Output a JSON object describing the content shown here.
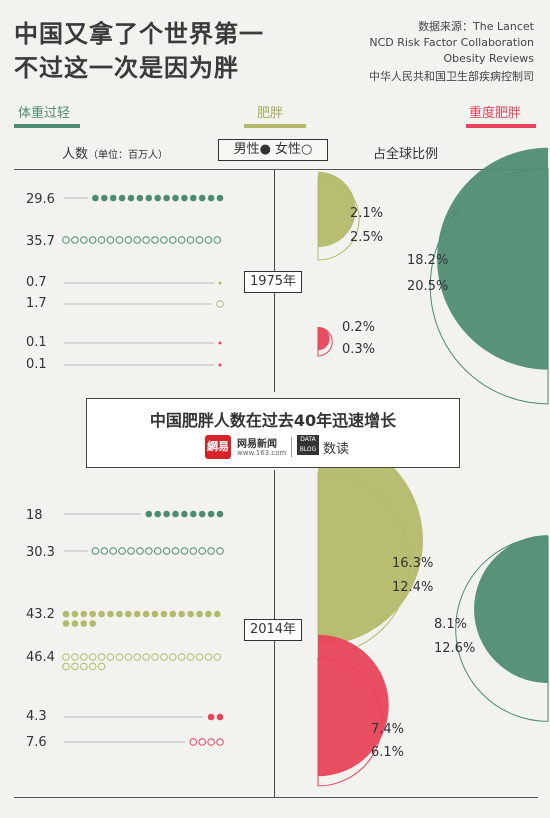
{
  "title": {
    "line1": "中国又拿了个世界第一",
    "line2": "不过这一次是因为胖"
  },
  "source": {
    "line1": "数据来源：The Lancet",
    "line2": "NCD Risk Factor Collaboration",
    "line3": "Obesity Reviews",
    "line4": "中华人民共和国卫生部疾病控制司"
  },
  "categories": {
    "underweight": "体重过轻",
    "obese": "肥胖",
    "severe": "重度肥胖"
  },
  "colors": {
    "underweight": "#4e8c72",
    "obese": "#b3bb6a",
    "severe": "#e8435a"
  },
  "header": {
    "count_label": "人数",
    "count_unit": "（单位：百万人）",
    "legend": "男性● 女性○",
    "share": "占全球比例"
  },
  "banner": {
    "title": "中国肥胖人数在过去40年迅速增长",
    "logo": "網易",
    "logo_name": "网易新闻",
    "logo_url": "www.163.com",
    "data_mark": "DATA BLOG",
    "data_read": "数读"
  },
  "chart_data": [
    {
      "type": "scatter",
      "year": "1975年",
      "description": "People count in millions (dots = male, circles = female) and share of global total",
      "rows": [
        {
          "category": "体重过轻",
          "sex": "男性",
          "count": "29.6",
          "share": "18.2%"
        },
        {
          "category": "体重过轻",
          "sex": "女性",
          "count": "35.7",
          "share": "20.5%"
        },
        {
          "category": "肥胖",
          "sex": "男性",
          "count": "0.7",
          "share": "2.1%"
        },
        {
          "category": "肥胖",
          "sex": "女性",
          "count": "1.7",
          "share": "2.5%"
        },
        {
          "category": "重度肥胖",
          "sex": "男性",
          "count": "0.1",
          "share": "0.2%"
        },
        {
          "category": "重度肥胖",
          "sex": "女性",
          "count": "0.1",
          "share": "0.3%"
        }
      ]
    },
    {
      "type": "scatter",
      "year": "2014年",
      "rows": [
        {
          "category": "体重过轻",
          "sex": "男性",
          "count": "18",
          "share": "8.1%"
        },
        {
          "category": "体重过轻",
          "sex": "女性",
          "count": "30.3",
          "share": "12.6%"
        },
        {
          "category": "肥胖",
          "sex": "男性",
          "count": "43.2",
          "share": "16.3%"
        },
        {
          "category": "肥胖",
          "sex": "女性",
          "count": "46.4",
          "share": "12.4%"
        },
        {
          "category": "重度肥胖",
          "sex": "男性",
          "count": "4.3",
          "share": "7.4%"
        },
        {
          "category": "重度肥胖",
          "sex": "女性",
          "count": "7.6",
          "share": "6.1%"
        }
      ]
    }
  ]
}
